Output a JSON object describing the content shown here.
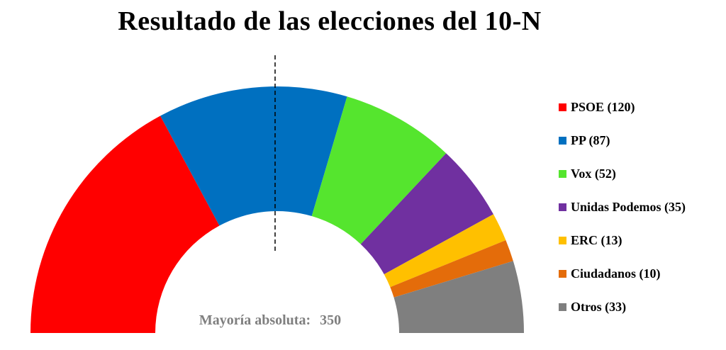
{
  "title": "Resultado de las elecciones del 10-N",
  "chart_data": {
    "type": "pie",
    "title": "Resultado de las elecciones del 10-N",
    "shape": "half-donut",
    "total": 350,
    "legend_position": "right",
    "series": [
      {
        "label": "PSOE",
        "value": 120,
        "legend": "PSOE (120)",
        "color": "#ff0000"
      },
      {
        "label": "PP",
        "value": 87,
        "legend": "PP (87)",
        "color": "#0070c0"
      },
      {
        "label": "Vox",
        "value": 52,
        "legend": "Vox (52)",
        "color": "#55e52e"
      },
      {
        "label": "Unidas Podemos",
        "value": 35,
        "legend": "Unidas Podemos (35)",
        "color": "#7030a0"
      },
      {
        "label": "ERC",
        "value": 13,
        "legend": "ERC (13)",
        "color": "#ffc000"
      },
      {
        "label": "Ciudadanos",
        "value": 10,
        "legend": "Ciudadanos (10)",
        "color": "#e46c0a"
      },
      {
        "label": "Otros",
        "value": 33,
        "legend": "Otros (33)",
        "color": "#7f7f7f"
      }
    ],
    "annotation": {
      "label": "Mayoría absoluta:",
      "value": "350",
      "marker": "dashed vertical line"
    }
  }
}
